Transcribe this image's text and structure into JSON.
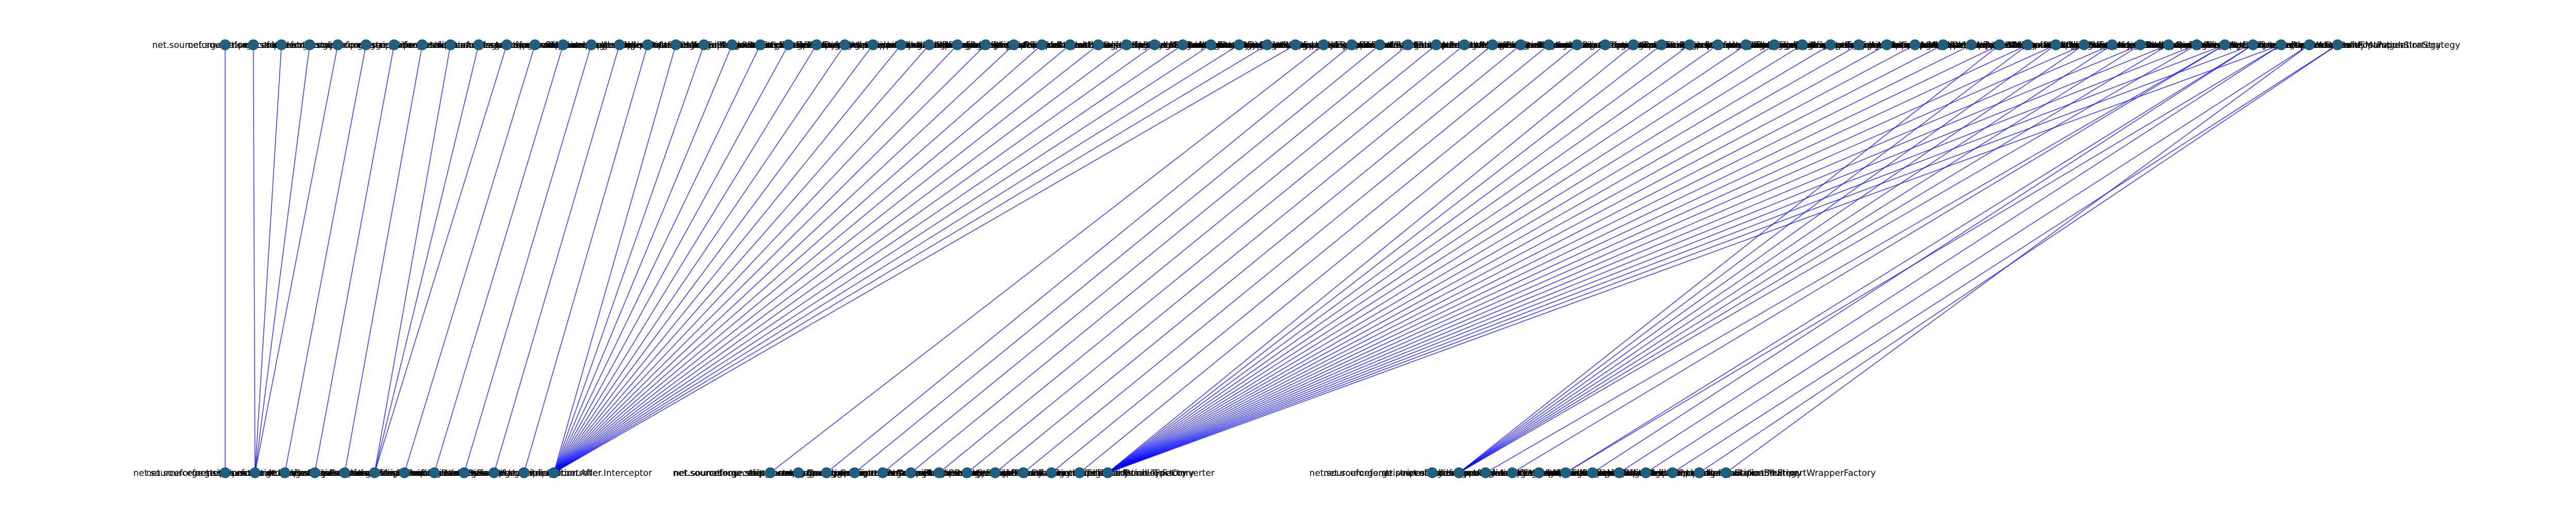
{
  "diagram": {
    "type": "bipartite-dependency-graph",
    "top_row_labels": [
      "net.sourceforge.stripes.controller",
      "net.sourceforge.stripes.action",
      "net.sourceforge.stripes.ajax",
      "net.sourceforge.stripes.config",
      "net.sourceforge.stripes.exception",
      "net.sourceforge.stripes.format",
      "net.sourceforge.stripes.localization",
      "net.sourceforge.stripes.mock",
      "net.sourceforge.stripes.tag",
      "net.sourceforge.stripes.util",
      "net.sourceforge.stripes.validation",
      "net.sourceforge.stripes.validation.expression",
      "net.sourceforge.stripes.controller.multipart",
      "net.sourceforge.stripes.controller.ObjectPostProcessor",
      "net.sourceforge.stripes.controller.DefaultObjectFactory",
      "net.sourceforge.stripes.controller.ActionResolver",
      "net.sourceforge.stripes.controller.ActionBeanPropertyBinder",
      "net.sourceforge.stripes.controller.ActionBeanContextFactory",
      "net.sourceforge.stripes.controller.LocalePicker",
      "net.sourceforge.stripes.controller.ExecutionContext",
      "net.sourceforge.stripes.controller.DispatcherHelper",
      "net.sourceforge.stripes.controller.StripesFilter",
      "net.sourceforge.stripes.controller.LifecycleStage",
      "net.sourceforge.stripes.controller.UrlBinding",
      "net.sourceforge.stripes.controller.UrlBindingFactory",
      "net.sourceforge.stripes.controller.NameBasedActionResolver",
      "net.sourceforge.stripes.controller.FlashScope",
      "net.sourceforge.stripes.format.Formatter",
      "net.sourceforge.stripes.format.FormatterFactory",
      "net.sourceforge.stripes.format.DefaultFormatterFactory",
      "net.sourceforge.stripes.localization.LocalizationBundleFactory",
      "net.sourceforge.stripes.localization.DefaultLocalizationBundleFactory",
      "net.sourceforge.stripes.tag.TagErrorRendererFactory",
      "net.sourceforge.stripes.tag.PopulationStrategy",
      "net.sourceforge.stripes.tag.DefaultTagErrorRendererFactory",
      "net.sourceforge.stripes.util.ReflectUtil",
      "net.sourceforge.stripes.util.Log",
      "net.sourceforge.stripes.util.bean.PropertyExpression",
      "net.sourceforge.stripes.validation.TypeConverter",
      "net.sourceforge.stripes.validation.TypeConverterFactory",
      "net.sourceforge.stripes.validation.DefaultTypeConverterFactory",
      "net.sourceforge.stripes.validation.ValidationMetadataProvider",
      "net.sourceforge.stripes.validation.DefaultValidationMetadataProvider",
      "net.sourceforge.stripes.action.ActionBean",
      "net.sourceforge.stripes.action.ActionBeanContext",
      "net.sourceforge.stripes.action.Resolution",
      "net.sourceforge.stripes.action.ForwardResolution",
      "net.sourceforge.stripes.action.RedirectResolution",
      "net.sourceforge.stripes.action.StreamingResolution",
      "net.sourceforge.stripes.exception.ExceptionHandler",
      "net.sourceforge.stripes.exception.DefaultExceptionHandler",
      "net.sourceforge.stripes.exception.StripesRuntimeException",
      "net.sourceforge.stripes.exception.StripesServletException",
      "net.sourceforge.stripes.config.Configuration",
      "net.sourceforge.stripes.config.DefaultConfiguration",
      "net.sourceforge.stripes.config.RuntimeConfiguration",
      "net.sourceforge.stripes.config.BootstrapPropertyResolver",
      "net.sourceforge.stripes.config.ConfigurableComponent",
      "net.sourceforge.stripes.controller.multipart.MultipartWrapper",
      "net.sourceforge.stripes.controller.multipart.MultipartWrapperFactory",
      "net.sourceforge.stripes.controller.multipart.DefaultMultipartWrapperFactory",
      "net.sourceforge.stripes.controller.multipart.CosMultipartWrapper",
      "net.sourceforge.stripes.controller.multipart.CommonsMultipartWrapper",
      "net.sourceforge.stripes.controller.ActionBeanContextFactory",
      "net.sourceforge.stripes.controller.DefaultActionBeanContextFactory",
      "net.sourceforge.stripes.controller.DefaultLocalePicker",
      "net.sourceforge.stripes.controller.DefaultActionBeanPropertyBinder",
      "net.sourceforge.stripes.controller.Interceptor",
      "net.sourceforge.stripes.controller.Intercepts",
      "net.sourceforge.stripes.controller.BeforeAfterMethodInterceptor",
      "net.sourceforge.stripes.controller.HttpCacheInterceptor",
      "net.sourceforge.stripes.controller.StripesRequestWrapper",
      "net.sourceforge.stripes.controller.ParameterName",
      "net.sourceforge.stripes.controller.BindingPolicyManager",
      "net.sourceforge.stripes.controller.DefaultPopulationStrategy",
      "net.sourceforge.stripes.tag.BeanFirstPopulationStrategy"
    ],
    "bottom_group_1_labels": [
      "net.sourceforge.stripes.action.ActionBean",
      "net.sourceforge.stripes.action.ActionBeanContext",
      "net.sourceforge.stripes.action.Resolution",
      "net.sourceforge.stripes.action.ForwardResolution",
      "net.sourceforge.stripes.action.RedirectResolution",
      "net.sourceforge.stripes.action.StreamingResolution",
      "net.sourceforge.stripes.action.HandlesEvent",
      "net.sourceforge.stripes.action.DefaultHandler",
      "net.sourceforge.stripes.action.UrlBinding",
      "net.sourceforge.stripes.action.Before",
      "net.sourceforge.stripes.action.After",
      "net.sourceforge.stripes.controller.Interceptor"
    ],
    "bottom_group_2_labels": [
      "net.sourceforge.stripes.config.Configuration",
      "net.sourceforge.stripes.config.BootstrapPropertyResolver",
      "net.sourceforge.stripes.config.ConfigurableComponent",
      "net.sourceforge.stripes.controller.ActionResolver",
      "net.sourceforge.stripes.controller.ActionBeanPropertyBinder",
      "net.sourceforge.stripes.controller.ActionBeanContextFactory",
      "net.sourceforge.stripes.controller.LocalePicker",
      "net.sourceforge.stripes.controller.ObjectFactory",
      "net.sourceforge.stripes.exception.ExceptionHandler",
      "net.sourceforge.stripes.format.FormatterFactory",
      "net.sourceforge.stripes.localization.LocalizationBundleFactory",
      "net.sourceforge.stripes.tag.TagErrorRendererFactory",
      "net.sourceforge.stripes.validation.TypeConverter"
    ],
    "bottom_group_3_labels": [
      "net.sourceforge.stripes.validation.TypeConverterFactory",
      "net.sourceforge.stripes.validation.ValidationMetadataProvider",
      "net.sourceforge.stripes.validation.ValidationError",
      "net.sourceforge.stripes.validation.ValidationErrors",
      "net.sourceforge.stripes.validation.ValidationState",
      "net.sourceforge.stripes.validation.Validate",
      "net.sourceforge.stripes.validation.ValidateNestedProperties",
      "net.sourceforge.stripes.validation.SimpleError",
      "net.sourceforge.stripes.validation.LocalizableError",
      "net.sourceforge.stripes.validation.ScopedLocalizableError",
      "net.sourceforge.stripes.tag.PopulationStrategy",
      "net.sourceforge.stripes.controller.multipart.MultipartWrapperFactory"
    ],
    "top_row_count": 76,
    "bottom_group_1_count": 12,
    "bottom_group_2_count": 13,
    "bottom_group_3_count": 12,
    "edges": [
      [
        0,
        0
      ],
      [
        1,
        1
      ],
      [
        2,
        1
      ],
      [
        3,
        1
      ],
      [
        4,
        1
      ],
      [
        5,
        2
      ],
      [
        6,
        3
      ],
      [
        7,
        4
      ],
      [
        8,
        5
      ],
      [
        9,
        5
      ],
      [
        10,
        5
      ],
      [
        11,
        6
      ],
      [
        12,
        7
      ],
      [
        13,
        8
      ],
      [
        14,
        9
      ],
      [
        15,
        10
      ],
      [
        16,
        11
      ],
      [
        17,
        11
      ],
      [
        18,
        11
      ],
      [
        19,
        11
      ],
      [
        20,
        11
      ],
      [
        21,
        11
      ],
      [
        22,
        11
      ],
      [
        23,
        11
      ],
      [
        24,
        11
      ],
      [
        25,
        11
      ],
      [
        26,
        11
      ],
      [
        27,
        11
      ],
      [
        28,
        11
      ],
      [
        29,
        11
      ],
      [
        30,
        11
      ],
      [
        31,
        11
      ],
      [
        32,
        11
      ],
      [
        33,
        11
      ],
      [
        34,
        11
      ],
      [
        35,
        11
      ],
      [
        36,
        11
      ],
      [
        37,
        11
      ],
      [
        38,
        11
      ],
      [
        39,
        12
      ],
      [
        40,
        14
      ],
      [
        41,
        15
      ],
      [
        42,
        16
      ],
      [
        43,
        17
      ],
      [
        44,
        18
      ],
      [
        45,
        19
      ],
      [
        46,
        20
      ],
      [
        47,
        21
      ],
      [
        48,
        22
      ],
      [
        49,
        23
      ],
      [
        50,
        24
      ],
      [
        51,
        24
      ],
      [
        52,
        24
      ],
      [
        53,
        24
      ],
      [
        54,
        24
      ],
      [
        55,
        24
      ],
      [
        56,
        24
      ],
      [
        57,
        24
      ],
      [
        58,
        24
      ],
      [
        59,
        24
      ],
      [
        60,
        24
      ],
      [
        61,
        24
      ],
      [
        62,
        24
      ],
      [
        63,
        24
      ],
      [
        64,
        24
      ],
      [
        65,
        24
      ],
      [
        66,
        24
      ],
      [
        67,
        24
      ],
      [
        68,
        24
      ],
      [
        69,
        24
      ],
      [
        70,
        24
      ],
      [
        71,
        24
      ],
      [
        72,
        24
      ],
      [
        73,
        24
      ],
      [
        63,
        26
      ],
      [
        64,
        26
      ],
      [
        65,
        26
      ],
      [
        66,
        26
      ],
      [
        67,
        26
      ],
      [
        68,
        26
      ],
      [
        69,
        26
      ],
      [
        70,
        26
      ],
      [
        71,
        27
      ],
      [
        71,
        28
      ],
      [
        72,
        30
      ],
      [
        72,
        31
      ],
      [
        73,
        30
      ],
      [
        73,
        32
      ],
      [
        74,
        33
      ],
      [
        75,
        34
      ],
      [
        75,
        35
      ],
      [
        74,
        36
      ],
      [
        75,
        37
      ]
    ]
  }
}
